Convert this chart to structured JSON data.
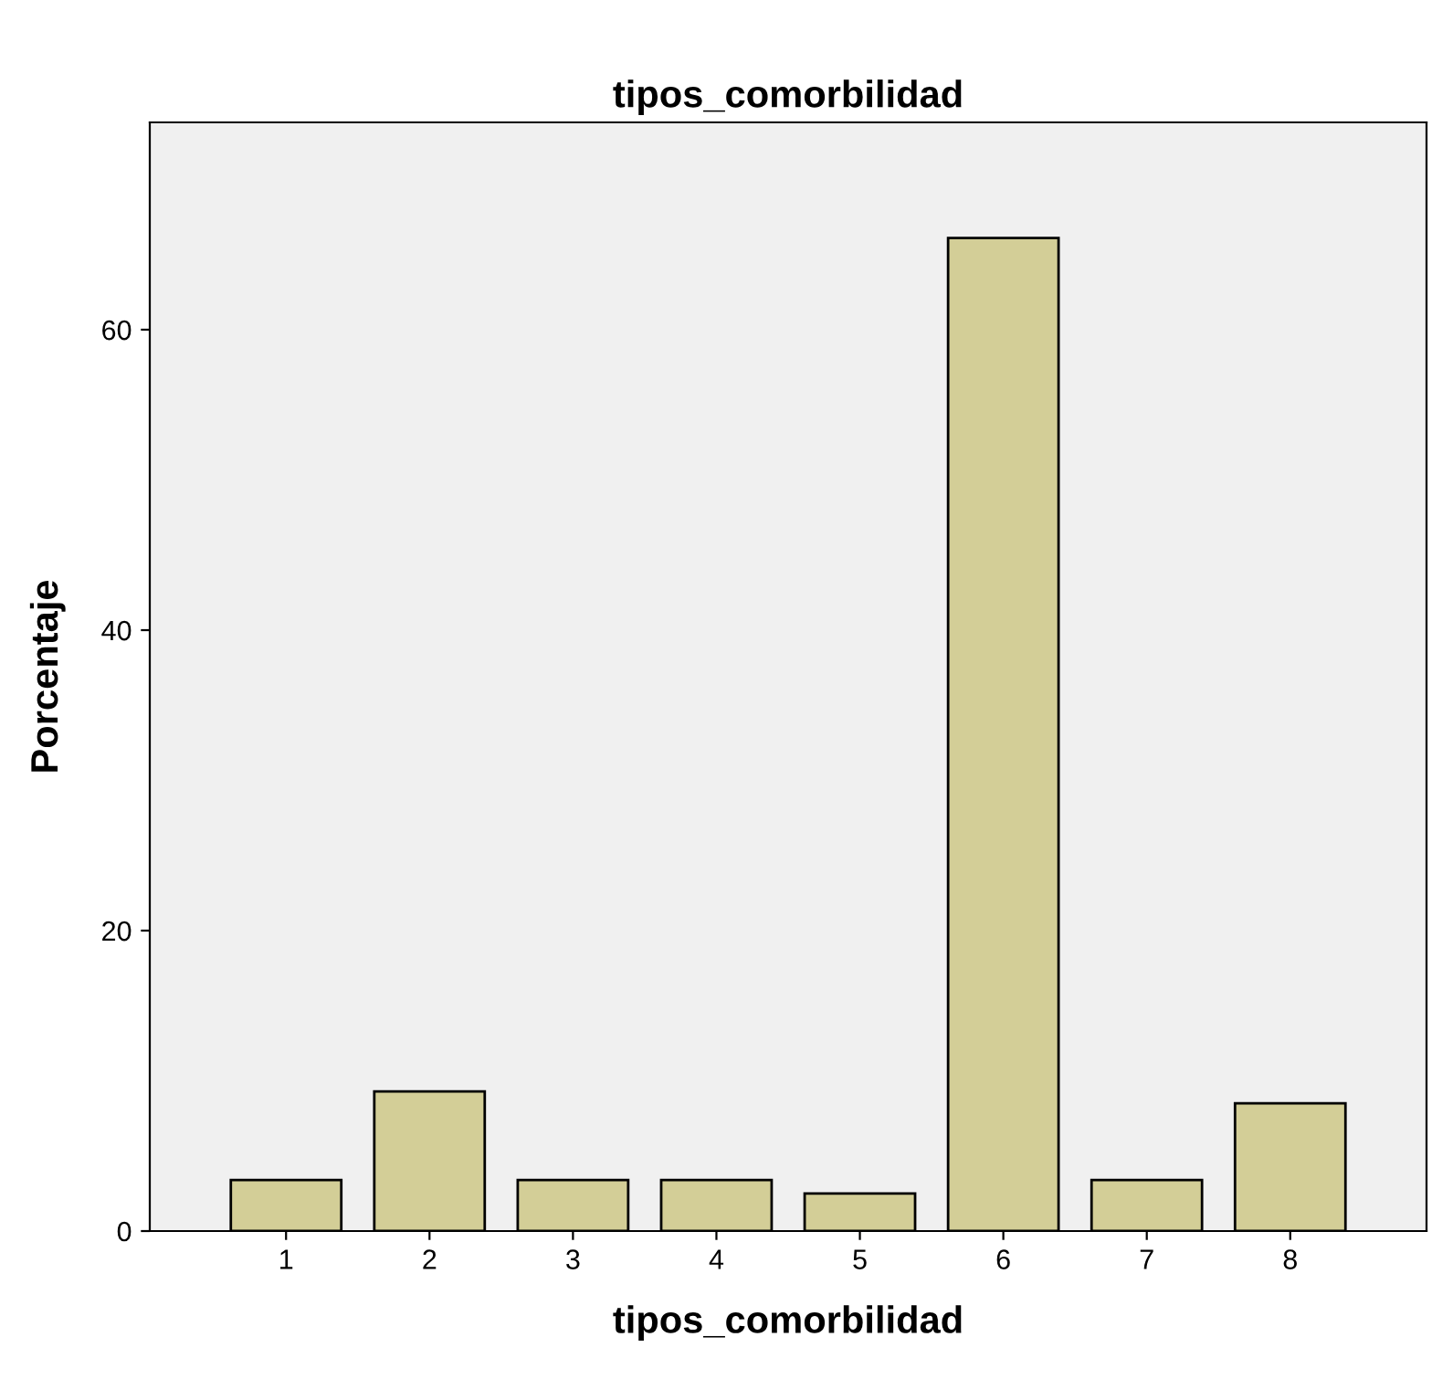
{
  "chart_data": {
    "type": "bar",
    "title": "tipos_comorbilidad",
    "xlabel": "tipos_comorbilidad",
    "ylabel": "Porcentaje",
    "categories": [
      "1",
      "2",
      "3",
      "4",
      "5",
      "6",
      "7",
      "8"
    ],
    "values": [
      3.4,
      9.3,
      3.4,
      3.4,
      2.5,
      66.1,
      3.4,
      8.5
    ],
    "color": "#d3ce97",
    "ylim": [
      0,
      73.8
    ],
    "yticks": [
      0,
      20,
      40,
      60
    ],
    "grid": false
  }
}
